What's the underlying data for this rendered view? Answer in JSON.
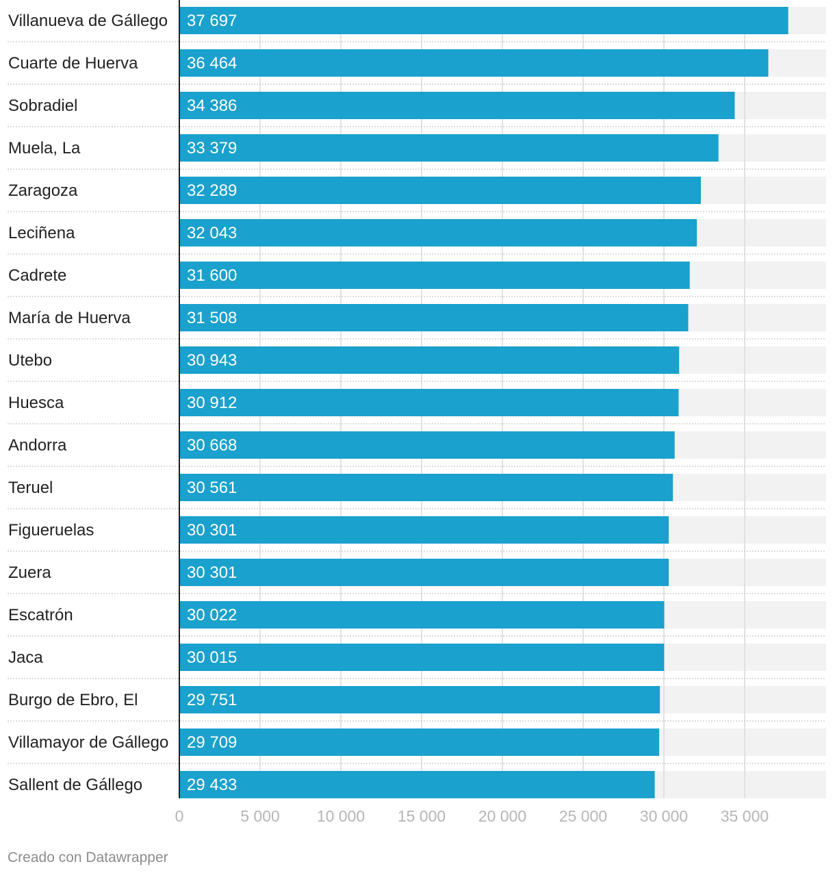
{
  "chart_data": {
    "type": "bar",
    "orientation": "horizontal",
    "categories": [
      "Villanueva de Gállego",
      "Cuarte de Huerva",
      "Sobradiel",
      "Muela, La",
      "Zaragoza",
      "Leciñena",
      "Cadrete",
      "María de Huerva",
      "Utebo",
      "Huesca",
      "Andorra",
      "Teruel",
      "Figueruelas",
      "Zuera",
      "Escatrón",
      "Jaca",
      "Burgo de Ebro, El",
      "Villamayor de Gállego",
      "Sallent de Gállego"
    ],
    "values": [
      37697,
      36464,
      34386,
      33379,
      32289,
      32043,
      31600,
      31508,
      30943,
      30912,
      30668,
      30561,
      30301,
      30301,
      30022,
      30015,
      29751,
      29709,
      29433
    ],
    "value_labels": [
      "37 697",
      "36 464",
      "34 386",
      "33 379",
      "32 289",
      "32 043",
      "31 600",
      "31 508",
      "30 943",
      "30 912",
      "30 668",
      "30 561",
      "30 301",
      "30 301",
      "30 022",
      "30 015",
      "29 751",
      "29 709",
      "29 433"
    ],
    "x_ticks": [
      0,
      5000,
      10000,
      15000,
      20000,
      25000,
      30000,
      35000
    ],
    "x_tick_labels": [
      "0",
      "5 000",
      "10 000",
      "15 000",
      "20 000",
      "25 000",
      "30 000",
      "35 000"
    ],
    "xlim": [
      0,
      40000
    ],
    "grid": true,
    "bar_color": "#1aa1cd",
    "track_color": "#f2f2f2",
    "gridline_color": "#d9d9d9",
    "label_color": "#222222",
    "tick_color": "#b5b5b5"
  },
  "footer": {
    "credit": "Creado con Datawrapper"
  }
}
